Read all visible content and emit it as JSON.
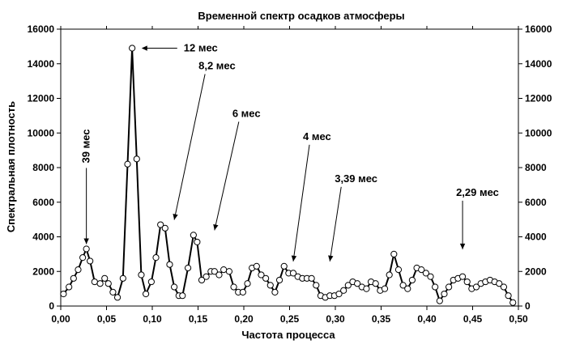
{
  "chart_data": {
    "type": "line",
    "title": "Временной спектр осадков атмосферы",
    "xlabel": "Частота процесса",
    "ylabel": "Спектральная плотность",
    "xlim": [
      0,
      0.5
    ],
    "ylim": [
      0,
      16000
    ],
    "x_ticks": [
      0,
      0.05,
      0.1,
      0.15,
      0.2,
      0.25,
      0.3,
      0.35,
      0.4,
      0.45,
      0.5
    ],
    "x_tick_labels": [
      "0,00",
      "0,05",
      "0,10",
      "0,15",
      "0,20",
      "0,25",
      "0,30",
      "0,35",
      "0,40",
      "0,45",
      "0,50"
    ],
    "y_ticks": [
      0,
      2000,
      4000,
      6000,
      8000,
      10000,
      12000,
      14000,
      16000
    ],
    "y_tick_labels": [
      "0",
      "2000",
      "4000",
      "6000",
      "8000",
      "10000",
      "12000",
      "14000",
      "16000"
    ],
    "y_axis_right": true,
    "grid": false,
    "series": [
      {
        "color": "#000000",
        "marker": "open-circle",
        "x": [
          0.003,
          0.009,
          0.014,
          0.019,
          0.024,
          0.028,
          0.032,
          0.037,
          0.043,
          0.048,
          0.052,
          0.057,
          0.062,
          0.068,
          0.073,
          0.078,
          0.083,
          0.088,
          0.093,
          0.099,
          0.104,
          0.109,
          0.114,
          0.119,
          0.124,
          0.129,
          0.133,
          0.139,
          0.145,
          0.149,
          0.154,
          0.159,
          0.164,
          0.168,
          0.173,
          0.178,
          0.184,
          0.189,
          0.194,
          0.199,
          0.204,
          0.209,
          0.214,
          0.219,
          0.224,
          0.229,
          0.234,
          0.239,
          0.244,
          0.249,
          0.254,
          0.259,
          0.264,
          0.269,
          0.274,
          0.279,
          0.284,
          0.289,
          0.294,
          0.299,
          0.304,
          0.309,
          0.314,
          0.319,
          0.324,
          0.329,
          0.334,
          0.339,
          0.344,
          0.349,
          0.354,
          0.359,
          0.364,
          0.369,
          0.374,
          0.379,
          0.384,
          0.389,
          0.394,
          0.399,
          0.404,
          0.409,
          0.414,
          0.419,
          0.424,
          0.429,
          0.434,
          0.439,
          0.444,
          0.449,
          0.454,
          0.459,
          0.464,
          0.469,
          0.474,
          0.479,
          0.484,
          0.489,
          0.494
        ],
        "y": [
          700,
          1100,
          1600,
          2100,
          2800,
          3300,
          2600,
          1400,
          1300,
          1600,
          1300,
          800,
          500,
          1600,
          8200,
          14900,
          8500,
          1800,
          700,
          1400,
          2800,
          4700,
          4500,
          2400,
          1100,
          600,
          600,
          2200,
          4100,
          3700,
          1500,
          1700,
          2000,
          2000,
          1800,
          2100,
          2000,
          1100,
          800,
          800,
          1300,
          2200,
          2300,
          1800,
          1600,
          1200,
          800,
          1500,
          2300,
          1900,
          1900,
          1700,
          1600,
          1600,
          1600,
          1200,
          600,
          500,
          600,
          600,
          700,
          900,
          1200,
          1400,
          1300,
          1100,
          1000,
          1400,
          1300,
          900,
          1000,
          1800,
          3000,
          2100,
          1200,
          1000,
          1500,
          2200,
          2100,
          1900,
          1700,
          1100,
          300,
          700,
          1100,
          1500,
          1600,
          1700,
          1400,
          1000,
          1100,
          1300,
          1400,
          1500,
          1400,
          1300,
          1100,
          600,
          200
        ]
      }
    ],
    "annotations": [
      {
        "text": "39 мес",
        "x": 0.028,
        "y": 3300
      },
      {
        "text": "12 мес",
        "x": 0.083,
        "y": 14900
      },
      {
        "text": "8,2 мес",
        "x": 0.124,
        "y": 4700
      },
      {
        "text": "6 мес",
        "x": 0.168,
        "y": 4100
      },
      {
        "text": "4 мес",
        "x": 0.254,
        "y": 2300
      },
      {
        "text": "3,39 мес",
        "x": 0.294,
        "y": 2300
      },
      {
        "text": "2,29 мес",
        "x": 0.439,
        "y": 3000
      }
    ]
  }
}
